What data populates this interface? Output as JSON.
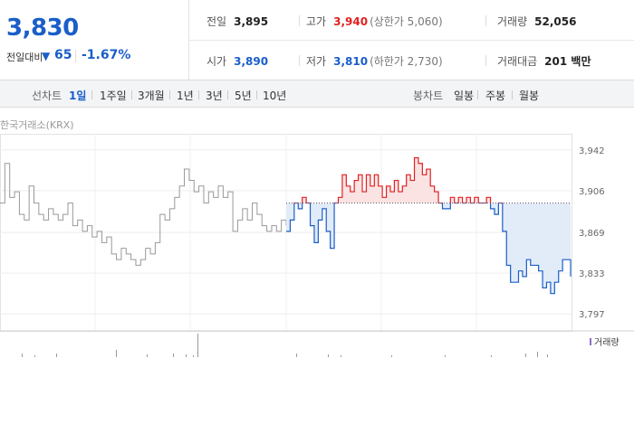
{
  "summary": {
    "price": "3,830",
    "change_label": "전일대비",
    "change_arrow": "▼",
    "change_value": "65",
    "change_pct": "-1.67%"
  },
  "info": {
    "prev_close": {
      "label": "전일",
      "value": "3,895"
    },
    "high": {
      "label": "고가",
      "value": "3,940",
      "note": "(상한가 5,060)"
    },
    "volume": {
      "label": "거래량",
      "value": "52,056"
    },
    "open": {
      "label": "시가",
      "value": "3,890"
    },
    "low": {
      "label": "저가",
      "value": "3,810",
      "note": "(하한가 2,730)"
    },
    "amount": {
      "label": "거래대금",
      "value": "201 백만"
    }
  },
  "toolbar": {
    "line_label": "선차트",
    "line_options": [
      "1일",
      "1주일",
      "3개월",
      "1년",
      "3년",
      "5년",
      "10년"
    ],
    "selected": "1일",
    "candle_label": "봉차트",
    "candle_options": [
      "일봉",
      "주봉",
      "월봉"
    ]
  },
  "exchange_label": "한국거래소(KRX)",
  "volume_legend": "거래량",
  "colors": {
    "up": "#e02020",
    "down": "#1a5ec9",
    "prev": "#999999",
    "up_fill": "#fbe3e3",
    "down_fill": "#e2ebf8"
  },
  "chart_data": {
    "type": "line",
    "title": "",
    "xlabel": "",
    "ylabel": "",
    "y_ticks": [
      "3,942",
      "3,906",
      "3,869",
      "3,833",
      "3,797"
    ],
    "ylim": [
      3790,
      3949
    ],
    "reference": 3895,
    "grid": true,
    "prev_series": [
      3895,
      3930,
      3900,
      3905,
      3885,
      3880,
      3910,
      3895,
      3885,
      3880,
      3890,
      3885,
      3880,
      3885,
      3895,
      3875,
      3880,
      3870,
      3875,
      3865,
      3870,
      3860,
      3865,
      3850,
      3845,
      3855,
      3850,
      3845,
      3840,
      3845,
      3855,
      3850,
      3860,
      3885,
      3880,
      3890,
      3900,
      3910,
      3925,
      3915,
      3905,
      3910,
      3895,
      3905,
      3900,
      3910,
      3900,
      3905,
      3870,
      3880,
      3890,
      3880,
      3895,
      3885,
      3875,
      3870,
      3875,
      3870,
      3880,
      3875
    ],
    "series": [
      3870,
      3880,
      3895,
      3890,
      3900,
      3895,
      3875,
      3860,
      3880,
      3890,
      3870,
      3855,
      3895,
      3900,
      3920,
      3910,
      3905,
      3915,
      3920,
      3905,
      3920,
      3910,
      3920,
      3910,
      3900,
      3910,
      3905,
      3915,
      3905,
      3910,
      3920,
      3915,
      3935,
      3930,
      3920,
      3925,
      3910,
      3905,
      3895,
      3890,
      3890,
      3900,
      3895,
      3900,
      3895,
      3900,
      3895,
      3900,
      3895,
      3895,
      3900,
      3890,
      3885,
      3895,
      3870,
      3840,
      3825,
      3825,
      3835,
      3830,
      3845,
      3840,
      3840,
      3835,
      3820,
      3825,
      3815,
      3825,
      3835,
      3845,
      3845,
      3830
    ]
  }
}
